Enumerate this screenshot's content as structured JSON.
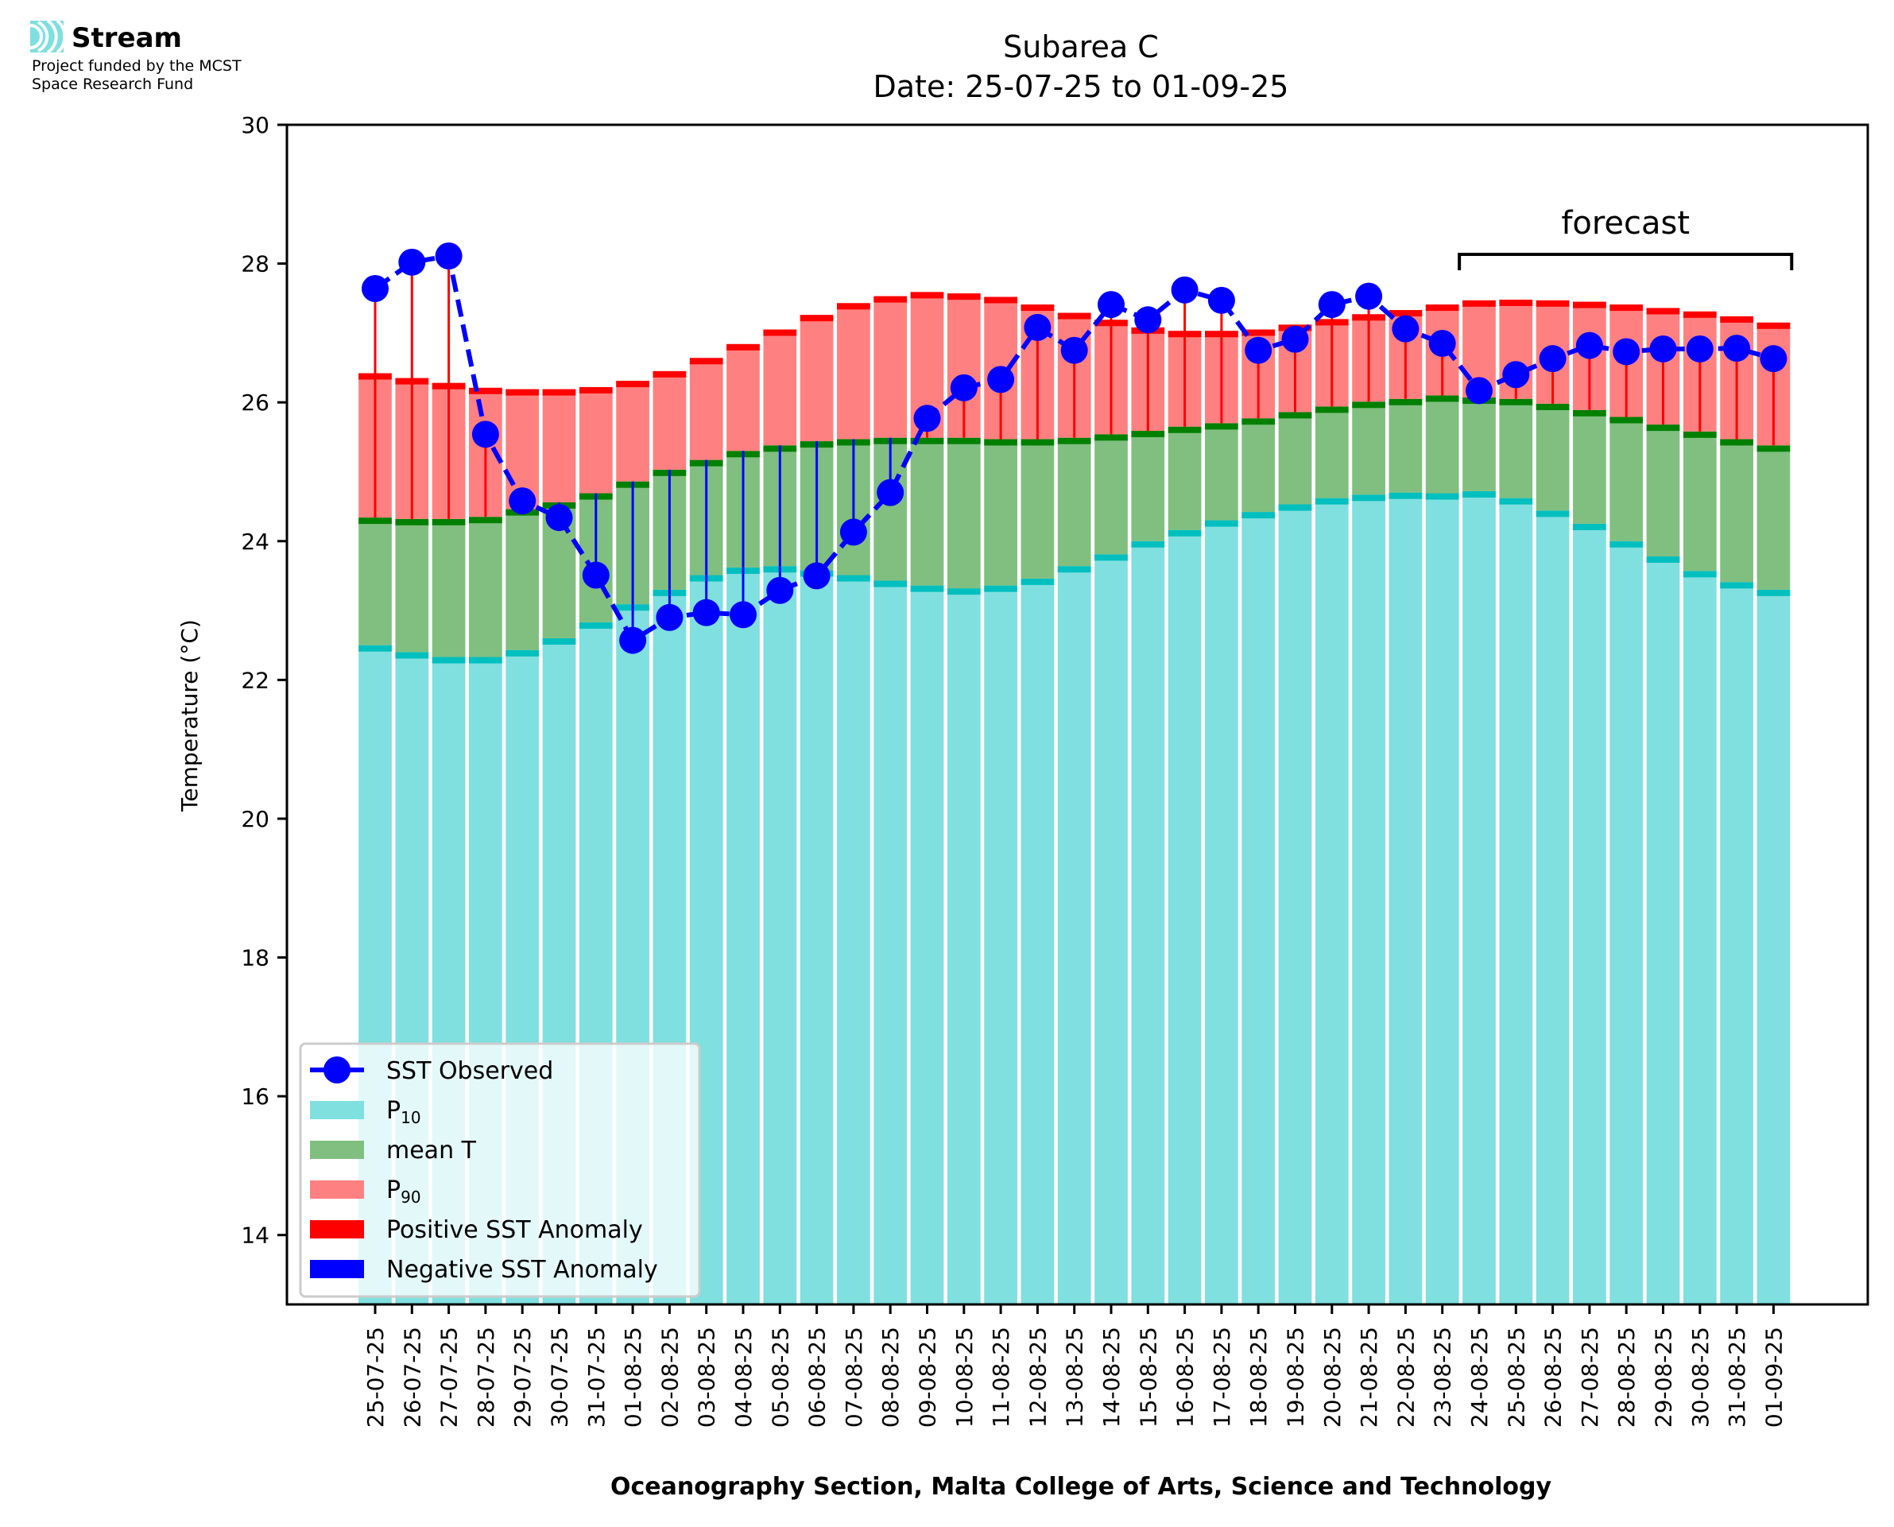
{
  "branding": {
    "name": "Stream",
    "funding_line1": "Project funded by the MCST",
    "funding_line2": "Space Research Fund",
    "accent": "#7fdfdf"
  },
  "chart_data": {
    "type": "bar",
    "title": "Subarea C",
    "subtitle": "Date: 25-07-25 to 01-09-25",
    "xlabel": "Oceanography Section, Malta College of Arts, Science and Technology",
    "ylabel": "Temperature (°C)",
    "ylim": [
      13,
      30
    ],
    "yticks": [
      14,
      16,
      18,
      20,
      22,
      24,
      26,
      28,
      30
    ],
    "grid": false,
    "legend_position": "lower-left",
    "annotation": {
      "text": "forecast",
      "from": "24-08-25",
      "to": "01-09-25"
    },
    "colors": {
      "p10": "#80dfdf",
      "p10_cap": "#00bfbf",
      "mean": "#80bf80",
      "mean_cap": "#008000",
      "p90": "#ff8080",
      "p90_cap": "#ff0000",
      "observed": "#0000ff",
      "positive_anomaly": "#ff0000",
      "negative_anomaly": "#0000ff"
    },
    "legend": [
      {
        "label": "SST Observed",
        "kind": "line-marker",
        "color": "#0000ff"
      },
      {
        "label": "P",
        "sub": "10",
        "kind": "patch",
        "color": "#80dfdf"
      },
      {
        "label": "mean T",
        "kind": "patch",
        "color": "#80bf80"
      },
      {
        "label": "P",
        "sub": "90",
        "kind": "patch",
        "color": "#ff8080"
      },
      {
        "label": "Positive SST Anomaly",
        "kind": "patch",
        "color": "#ff0000"
      },
      {
        "label": "Negative SST Anomaly",
        "kind": "patch",
        "color": "#0000ff"
      }
    ],
    "categories": [
      "25-07-25",
      "26-07-25",
      "27-07-25",
      "28-07-25",
      "29-07-25",
      "30-07-25",
      "31-07-25",
      "01-08-25",
      "02-08-25",
      "03-08-25",
      "04-08-25",
      "05-08-25",
      "06-08-25",
      "07-08-25",
      "08-08-25",
      "09-08-25",
      "10-08-25",
      "11-08-25",
      "12-08-25",
      "13-08-25",
      "14-08-25",
      "15-08-25",
      "16-08-25",
      "17-08-25",
      "18-08-25",
      "19-08-25",
      "20-08-25",
      "21-08-25",
      "22-08-25",
      "23-08-25",
      "24-08-25",
      "25-08-25",
      "26-08-25",
      "27-08-25",
      "28-08-25",
      "29-08-25",
      "30-08-25",
      "31-08-25",
      "01-09-25"
    ],
    "series": [
      {
        "name": "P10",
        "values": [
          22.5,
          22.4,
          22.33,
          22.33,
          22.43,
          22.6,
          22.83,
          23.09,
          23.3,
          23.51,
          23.62,
          23.64,
          23.58,
          23.51,
          23.43,
          23.36,
          23.32,
          23.36,
          23.46,
          23.64,
          23.81,
          24.0,
          24.16,
          24.3,
          24.42,
          24.53,
          24.62,
          24.67,
          24.7,
          24.69,
          24.72,
          24.62,
          24.44,
          24.25,
          24.0,
          23.78,
          23.57,
          23.41,
          23.3
        ]
      },
      {
        "name": "mean T",
        "values": [
          24.34,
          24.32,
          24.32,
          24.35,
          24.46,
          24.56,
          24.69,
          24.86,
          25.03,
          25.17,
          25.3,
          25.38,
          25.44,
          25.47,
          25.49,
          25.49,
          25.49,
          25.47,
          25.47,
          25.49,
          25.54,
          25.59,
          25.65,
          25.7,
          25.77,
          25.86,
          25.94,
          26.01,
          26.05,
          26.1,
          26.07,
          26.05,
          25.98,
          25.89,
          25.79,
          25.68,
          25.58,
          25.47,
          25.38
        ]
      },
      {
        "name": "P90",
        "values": [
          26.42,
          26.35,
          26.28,
          26.21,
          26.19,
          26.19,
          26.22,
          26.31,
          26.45,
          26.64,
          26.84,
          27.05,
          27.26,
          27.43,
          27.53,
          27.59,
          27.57,
          27.52,
          27.41,
          27.29,
          27.19,
          27.08,
          27.03,
          27.03,
          27.05,
          27.12,
          27.2,
          27.27,
          27.33,
          27.41,
          27.47,
          27.48,
          27.47,
          27.45,
          27.41,
          27.36,
          27.31,
          27.24,
          27.15
        ]
      },
      {
        "name": "SST Observed",
        "values": [
          27.64,
          28.02,
          28.11,
          25.54,
          24.58,
          24.34,
          23.51,
          22.57,
          22.9,
          22.97,
          22.94,
          23.29,
          23.5,
          24.13,
          24.7,
          25.77,
          26.21,
          26.33,
          27.08,
          26.75,
          27.41,
          27.19,
          27.62,
          27.47,
          26.75,
          26.91,
          27.41,
          27.53,
          27.06,
          26.85,
          26.17,
          26.4,
          26.63,
          26.82,
          26.73,
          26.77,
          26.77,
          26.78,
          26.63
        ]
      }
    ]
  }
}
